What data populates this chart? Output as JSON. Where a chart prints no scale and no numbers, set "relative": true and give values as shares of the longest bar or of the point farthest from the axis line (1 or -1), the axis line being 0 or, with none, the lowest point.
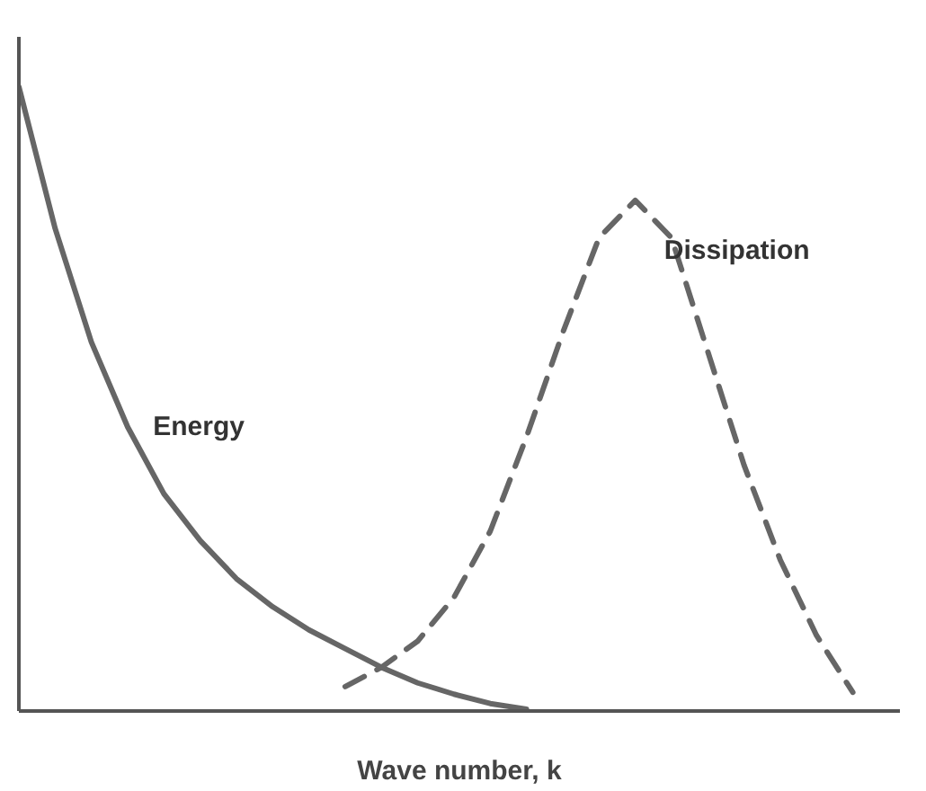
{
  "chart_data": {
    "type": "line",
    "relative": true,
    "xlabel": "Wave number, k",
    "legend": false,
    "categories": [
      null,
      null,
      null,
      null,
      null,
      null,
      null,
      null,
      null,
      null,
      null,
      null,
      null,
      null,
      null,
      null,
      null,
      null,
      null,
      null,
      null,
      null,
      null,
      null,
      null
    ],
    "series": [
      {
        "name": "Energy",
        "color": "#666666",
        "line_style": "solid",
        "values": [
          1.0,
          0.773,
          0.591,
          0.455,
          0.348,
          0.273,
          0.212,
          0.167,
          0.13,
          0.1,
          0.07,
          0.045,
          0.027,
          0.012,
          0.003,
          null,
          null,
          null,
          null,
          null,
          null,
          null,
          null,
          null,
          null
        ]
      },
      {
        "name": "Dissipation",
        "color": "#666666",
        "line_style": "dashed",
        "values": [
          null,
          null,
          null,
          null,
          null,
          null,
          null,
          null,
          null,
          0.039,
          0.07,
          0.112,
          0.182,
          0.288,
          0.439,
          0.606,
          0.758,
          0.818,
          0.758,
          0.576,
          0.394,
          0.242,
          0.121,
          0.03,
          null
        ]
      }
    ]
  }
}
